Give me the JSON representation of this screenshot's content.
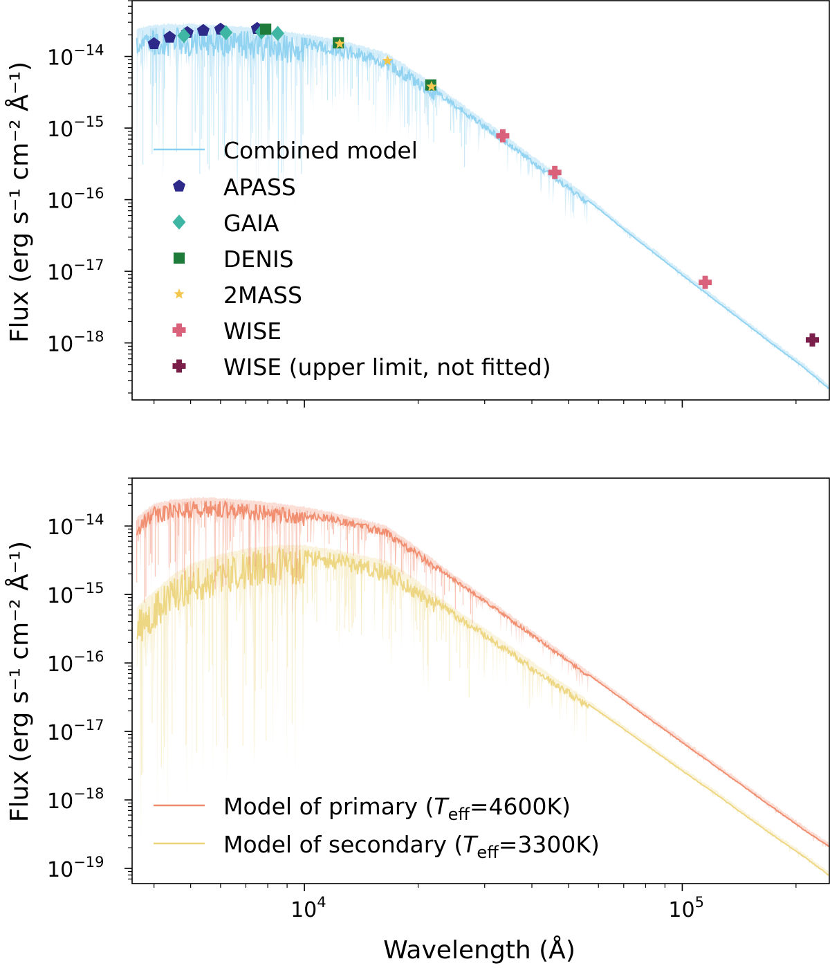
{
  "chart_data": [
    {
      "type": "line+scatter",
      "panel": "top",
      "xscale": "log",
      "yscale": "log",
      "xlim": [
        3500,
        245000
      ],
      "ylim": [
        1.6e-19,
        6e-14
      ],
      "ylabel": "Flux (erg s⁻¹ cm⁻² Å⁻¹)",
      "xlabel": "",
      "yticks": [
        {
          "value": 1e-14,
          "base": "10",
          "exp": "−14"
        },
        {
          "value": 1e-15,
          "base": "10",
          "exp": "−15"
        },
        {
          "value": 1e-16,
          "base": "10",
          "exp": "−16"
        },
        {
          "value": 1e-17,
          "base": "10",
          "exp": "−17"
        },
        {
          "value": 1e-18,
          "base": "10",
          "exp": "−18"
        }
      ],
      "legend_position": "lower-left",
      "series": [
        {
          "name": "Combined model",
          "kind": "line",
          "color": "#89cff0",
          "x": [
            3600,
            4000,
            4500,
            5000,
            5500,
            6000,
            7000,
            8000,
            9000,
            10000,
            12000,
            14000,
            16500,
            18000,
            20000,
            22000,
            25000,
            30000,
            35000,
            40000,
            45000,
            50000,
            55000,
            60000,
            70000,
            80000,
            100000,
            120000,
            150000,
            180000,
            210000,
            245000
          ],
          "y": [
            2.2e-14,
            2.5e-14,
            2.55e-14,
            2.55e-14,
            2.5e-14,
            2.45e-14,
            2.3e-14,
            2.15e-14,
            2e-14,
            1.85e-14,
            1.55e-14,
            1.3e-14,
            1e-14,
            7.5e-15,
            5.2e-15,
            3.7e-15,
            2.3e-15,
            1.15e-15,
            6.3e-16,
            3.7e-16,
            2.4e-16,
            1.6e-16,
            1.1e-16,
            7.6e-17,
            3.9e-17,
            2.25e-17,
            9e-18,
            4.3e-18,
            1.75e-18,
            8.4e-19,
            4.6e-19,
            2.3e-19
          ]
        },
        {
          "name": "APASS",
          "kind": "scatter",
          "marker": "pentagon",
          "color": "#2e2a8a",
          "x": [
            4000,
            4400,
            4900,
            5400,
            6000,
            7500
          ],
          "y": [
            1.5e-14,
            1.85e-14,
            2.15e-14,
            2.3e-14,
            2.4e-14,
            2.45e-14
          ]
        },
        {
          "name": "GAIA",
          "kind": "scatter",
          "marker": "diamond",
          "color": "#3fb5a3",
          "x": [
            4800,
            6200,
            7700,
            8500
          ],
          "y": [
            1.95e-14,
            2.15e-14,
            2.2e-14,
            2.1e-14
          ]
        },
        {
          "name": "DENIS",
          "kind": "scatter",
          "marker": "square",
          "color": "#1e7b3a",
          "x": [
            7900,
            12300,
            21600
          ],
          "y": [
            2.4e-14,
            1.55e-14,
            4e-15
          ]
        },
        {
          "name": "2MASS",
          "kind": "scatter",
          "marker": "star",
          "color": "#f5c74f",
          "x": [
            12400,
            16600,
            21700
          ],
          "y": [
            1.5e-14,
            8.7e-15,
            3.8e-15
          ]
        },
        {
          "name": "WISE",
          "kind": "scatter",
          "marker": "plus",
          "color": "#d9627a",
          "x": [
            33500,
            46000,
            115000
          ],
          "y": [
            7.8e-16,
            2.4e-16,
            7e-18
          ]
        },
        {
          "name": "WISE (upper limit, not fitted)",
          "kind": "scatter",
          "marker": "plus",
          "color": "#7a1f4a",
          "x": [
            221000
          ],
          "y": [
            1.1e-18
          ]
        }
      ]
    },
    {
      "type": "line",
      "panel": "bottom",
      "xscale": "log",
      "yscale": "log",
      "xlim": [
        3500,
        245000
      ],
      "ylim": [
        6e-20,
        5e-14
      ],
      "ylabel": "Flux (erg s⁻¹ cm⁻² Å⁻¹)",
      "xlabel": "Wavelength (Å)",
      "xticks": [
        {
          "value": 10000,
          "base": "10",
          "exp": "4"
        },
        {
          "value": 100000,
          "base": "10",
          "exp": "5"
        }
      ],
      "yticks": [
        {
          "value": 1e-14,
          "base": "10",
          "exp": "−14"
        },
        {
          "value": 1e-15,
          "base": "10",
          "exp": "−15"
        },
        {
          "value": 1e-16,
          "base": "10",
          "exp": "−16"
        },
        {
          "value": 1e-17,
          "base": "10",
          "exp": "−17"
        },
        {
          "value": 1e-18,
          "base": "10",
          "exp": "−18"
        },
        {
          "value": 1e-19,
          "base": "10",
          "exp": "−19"
        }
      ],
      "legend_position": "lower-left",
      "series": [
        {
          "name": "Model of primary",
          "teff_label": "T",
          "teff_sub": "eff",
          "teff_value": "=4600K)",
          "prefix": "Model of primary (",
          "color": "#f08a6c",
          "x": [
            3600,
            4000,
            4500,
            5000,
            5500,
            6000,
            7000,
            8000,
            9000,
            10000,
            12000,
            14000,
            16500,
            18000,
            20000,
            22000,
            25000,
            30000,
            35000,
            40000,
            45000,
            50000,
            60000,
            70000,
            80000,
            100000,
            120000,
            150000,
            180000,
            210000,
            245000
          ],
          "y": [
            1.2e-14,
            1.9e-14,
            2.2e-14,
            2.3e-14,
            2.35e-14,
            2.3e-14,
            2.15e-14,
            2e-14,
            1.85e-14,
            1.7e-14,
            1.4e-14,
            1.15e-14,
            9e-15,
            6.5e-15,
            4.3e-15,
            2.9e-15,
            1.7e-15,
            8.5e-16,
            4.6e-16,
            2.7e-16,
            1.7e-16,
            1.1e-16,
            5.4e-17,
            2.9e-17,
            1.7e-17,
            7e-18,
            3.4e-18,
            1.4e-18,
            6.8e-19,
            3.7e-19,
            2.1e-19
          ]
        },
        {
          "name": "Model of secondary",
          "teff_label": "T",
          "teff_sub": "eff",
          "teff_value": "=3300K)",
          "prefix": "Model of secondary (",
          "color": "#ecd47a",
          "x": [
            3600,
            4000,
            4500,
            5000,
            5500,
            6000,
            7000,
            8000,
            9000,
            10000,
            12000,
            14000,
            16500,
            18000,
            20000,
            22000,
            25000,
            30000,
            35000,
            40000,
            45000,
            50000,
            60000,
            70000,
            80000,
            100000,
            120000,
            150000,
            180000,
            210000,
            245000
          ],
          "y": [
            6e-16,
            1e-15,
            1.8e-15,
            2.5e-15,
            3e-15,
            3.5e-15,
            4.2e-15,
            4.6e-15,
            4.8e-15,
            4.7e-15,
            4.1e-15,
            3.4e-15,
            2.8e-15,
            2.1e-15,
            1.4e-15,
            9.5e-16,
            5.6e-16,
            2.9e-16,
            1.6e-16,
            9.6e-17,
            6e-17,
            4.1e-17,
            2e-17,
            1.1e-17,
            6.5e-18,
            2.7e-18,
            1.35e-18,
            5.5e-19,
            2.7e-19,
            1.5e-19,
            8e-20
          ]
        }
      ]
    }
  ]
}
